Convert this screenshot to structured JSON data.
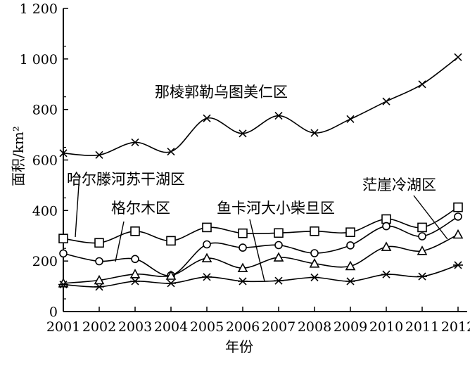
{
  "chart_data": {
    "type": "line",
    "title": "",
    "xlabel": "年份",
    "ylabel": "面积/km²",
    "ylim": [
      0,
      1200
    ],
    "yticks": [
      0,
      200,
      400,
      600,
      800,
      1000,
      1200
    ],
    "ytick_labels": [
      "0",
      "200",
      "400",
      "600",
      "800",
      "1 000",
      "1 200"
    ],
    "grid": false,
    "x": [
      "2001",
      "2002",
      "2003",
      "2004",
      "2005",
      "2006",
      "2007",
      "2008",
      "2009",
      "2010",
      "2011",
      "2012"
    ],
    "series": [
      {
        "name": "那棱郭勒乌图美仁区",
        "marker": "x",
        "values": [
          627,
          620,
          670,
          633,
          765,
          705,
          775,
          707,
          762,
          832,
          900,
          1007
        ]
      },
      {
        "name": "哈尔滕河苏干湖区",
        "marker": "square",
        "values": [
          289,
          272,
          318,
          280,
          333,
          310,
          311,
          318,
          314,
          366,
          333,
          413
        ]
      },
      {
        "name": "格尔木区",
        "marker": "circle",
        "values": [
          230,
          199,
          208,
          143,
          266,
          253,
          263,
          231,
          262,
          338,
          298,
          376
        ]
      },
      {
        "name": "茫崖冷湖区",
        "marker": "triangle",
        "values": [
          112,
          124,
          148,
          142,
          211,
          172,
          214,
          190,
          180,
          256,
          240,
          305
        ]
      },
      {
        "name": "鱼卡河大小柴旦区",
        "marker": "star",
        "values": [
          107,
          98,
          120,
          112,
          137,
          120,
          122,
          135,
          120,
          147,
          139,
          184
        ]
      }
    ]
  }
}
